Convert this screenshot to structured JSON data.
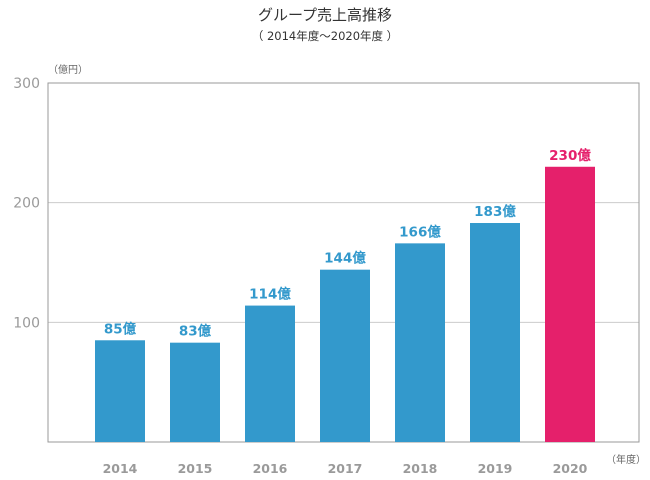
{
  "chart_data": {
    "type": "bar",
    "title": "グループ売上高推移",
    "subtitle": "（ 2014年度～2020年度 ）",
    "y_unit": "（億円）",
    "x_unit": "（年度）",
    "categories": [
      "2014",
      "2015",
      "2016",
      "2017",
      "2018",
      "2019",
      "2020"
    ],
    "values": [
      85,
      83,
      114,
      144,
      166,
      183,
      230
    ],
    "data_labels": [
      "85億",
      "83億",
      "114億",
      "144億",
      "166億",
      "183億",
      "230億"
    ],
    "ylim": [
      0,
      300
    ],
    "yticks": [
      "100",
      "200",
      "300"
    ],
    "grid": true,
    "legend": "none",
    "colors": {
      "bar": "#3399cc",
      "highlight": "#e5206b",
      "label": "#3399cc",
      "highlight_label": "#e5206b",
      "axis": "#999999",
      "grid": "#cccccc"
    },
    "highlight_index": 6
  }
}
